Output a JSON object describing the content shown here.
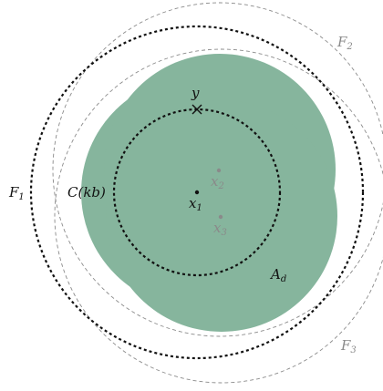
{
  "colors": {
    "region_fill": "#86b59d",
    "dark_stroke": "#111111",
    "grey_stroke": "#8a8a8a",
    "background": "#ffffff"
  },
  "labels": {
    "y": "y",
    "x1": {
      "base": "x",
      "sub": "1"
    },
    "x2": {
      "base": "x",
      "sub": "2"
    },
    "x3": {
      "base": "x",
      "sub": "3"
    },
    "C": "C(kb)",
    "F1": {
      "base": "F",
      "sub": "1"
    },
    "F2": {
      "base": "F",
      "sub": "2"
    },
    "F3": {
      "base": "F",
      "sub": "3"
    },
    "Ad": {
      "base": "A",
      "sub": "d"
    }
  },
  "icons": {
    "y_marker": "cross-mark-icon"
  }
}
